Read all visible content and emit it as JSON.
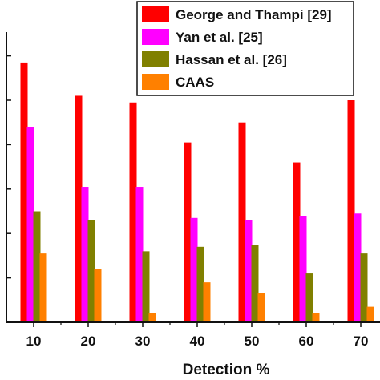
{
  "chart_data": {
    "type": "bar",
    "categories": [
      "10",
      "20",
      "30",
      "40",
      "50",
      "60",
      "70"
    ],
    "xlabel": "Detection %",
    "ylabel": "",
    "ylim": [
      0,
      12
    ],
    "y_ticks_visible": 7,
    "grid": false,
    "legend_position": "top-right",
    "series": [
      {
        "name": "George and Thampi [29]",
        "color": "#ff0000",
        "values": [
          11.7,
          10.2,
          9.9,
          8.1,
          9.0,
          7.2,
          10.0
        ]
      },
      {
        "name": "Yan et al. [25]",
        "color": "#ff00ff",
        "values": [
          8.8,
          6.1,
          6.1,
          4.7,
          4.6,
          4.8,
          4.9
        ]
      },
      {
        "name": "Hassan et al. [26]",
        "color": "#808000",
        "values": [
          5.0,
          4.6,
          3.2,
          3.4,
          3.5,
          2.2,
          3.1
        ]
      },
      {
        "name": "CAAS",
        "color": "#ff8000",
        "values": [
          3.1,
          2.4,
          0.4,
          1.8,
          1.3,
          0.4,
          0.7
        ]
      }
    ]
  }
}
